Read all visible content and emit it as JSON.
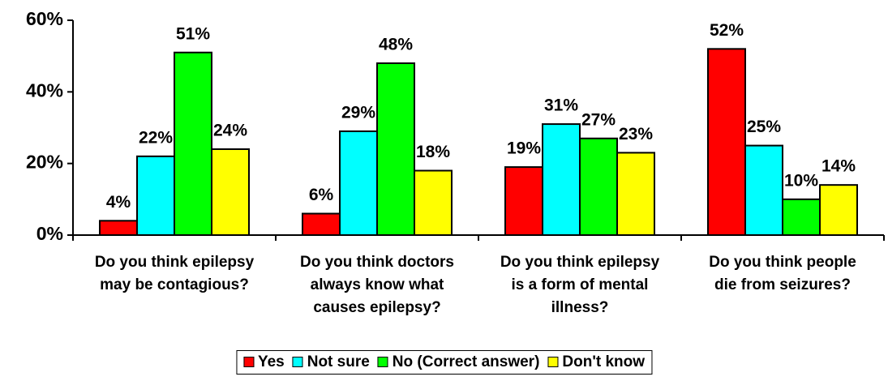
{
  "chart_data": {
    "type": "bar",
    "categories": [
      "Do you think epilepsy may be contagious?",
      "Do you think doctors always know what causes epilepsy?",
      "Do you think epilepsy is a form of mental illness?",
      "Do you think people die from seizures?"
    ],
    "series": [
      {
        "name": "Yes",
        "color": "#ff0000",
        "values": [
          4,
          6,
          19,
          52
        ],
        "value_labels": [
          "4%",
          "6%",
          "19%",
          "52%"
        ]
      },
      {
        "name": "Not sure",
        "color": "#00ffff",
        "values": [
          22,
          29,
          31,
          25
        ],
        "value_labels": [
          "22%",
          "29%",
          "31%",
          "25%"
        ]
      },
      {
        "name": "No (Correct answer)",
        "color": "#00ff00",
        "values": [
          51,
          48,
          27,
          10
        ],
        "value_labels": [
          "51%",
          "48%",
          "27%",
          "10%"
        ]
      },
      {
        "name": "Don't know",
        "color": "#ffff00",
        "values": [
          24,
          18,
          23,
          14
        ],
        "value_labels": [
          "24%",
          "18%",
          "23%",
          "14%"
        ]
      }
    ],
    "ylim": [
      0,
      60
    ],
    "yticks": [
      {
        "value": 0,
        "label": "0%"
      },
      {
        "value": 20,
        "label": "20%"
      },
      {
        "value": 40,
        "label": "40%"
      },
      {
        "value": 60,
        "label": "60%"
      }
    ],
    "legend": "bottom"
  }
}
